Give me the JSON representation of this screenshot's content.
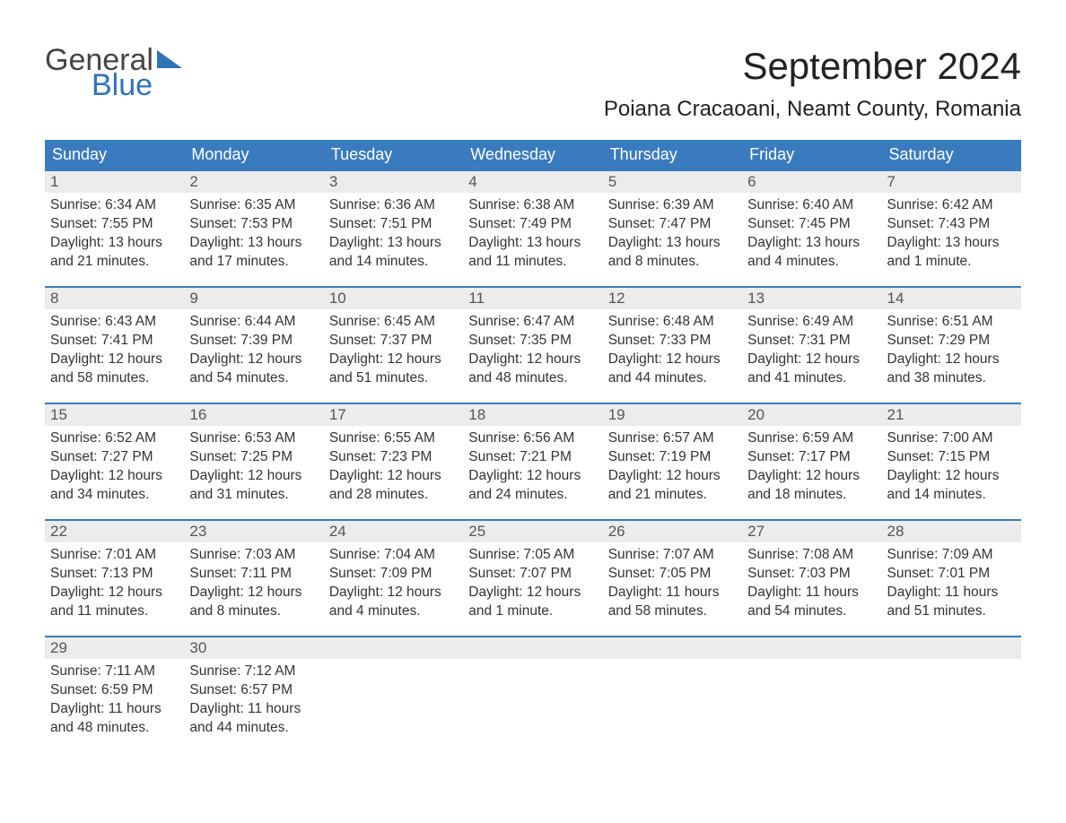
{
  "logo": {
    "text_general": "General",
    "text_blue": "Blue"
  },
  "header": {
    "month_title": "September 2024",
    "location": "Poiana Cracaoani, Neamt County, Romania"
  },
  "colors": {
    "header_bg": "#3a7bbf",
    "header_text": "#ffffff",
    "daynum_bg": "#ececec",
    "border": "#3a7bbf",
    "logo_general": "#444444",
    "logo_blue": "#2f72b8",
    "body_text": "#333333",
    "background": "#ffffff"
  },
  "weekdays": [
    "Sunday",
    "Monday",
    "Tuesday",
    "Wednesday",
    "Thursday",
    "Friday",
    "Saturday"
  ],
  "weeks": [
    [
      {
        "day": "1",
        "sunrise": "Sunrise: 6:34 AM",
        "sunset": "Sunset: 7:55 PM",
        "daylight": "Daylight: 13 hours and 21 minutes."
      },
      {
        "day": "2",
        "sunrise": "Sunrise: 6:35 AM",
        "sunset": "Sunset: 7:53 PM",
        "daylight": "Daylight: 13 hours and 17 minutes."
      },
      {
        "day": "3",
        "sunrise": "Sunrise: 6:36 AM",
        "sunset": "Sunset: 7:51 PM",
        "daylight": "Daylight: 13 hours and 14 minutes."
      },
      {
        "day": "4",
        "sunrise": "Sunrise: 6:38 AM",
        "sunset": "Sunset: 7:49 PM",
        "daylight": "Daylight: 13 hours and 11 minutes."
      },
      {
        "day": "5",
        "sunrise": "Sunrise: 6:39 AM",
        "sunset": "Sunset: 7:47 PM",
        "daylight": "Daylight: 13 hours and 8 minutes."
      },
      {
        "day": "6",
        "sunrise": "Sunrise: 6:40 AM",
        "sunset": "Sunset: 7:45 PM",
        "daylight": "Daylight: 13 hours and 4 minutes."
      },
      {
        "day": "7",
        "sunrise": "Sunrise: 6:42 AM",
        "sunset": "Sunset: 7:43 PM",
        "daylight": "Daylight: 13 hours and 1 minute."
      }
    ],
    [
      {
        "day": "8",
        "sunrise": "Sunrise: 6:43 AM",
        "sunset": "Sunset: 7:41 PM",
        "daylight": "Daylight: 12 hours and 58 minutes."
      },
      {
        "day": "9",
        "sunrise": "Sunrise: 6:44 AM",
        "sunset": "Sunset: 7:39 PM",
        "daylight": "Daylight: 12 hours and 54 minutes."
      },
      {
        "day": "10",
        "sunrise": "Sunrise: 6:45 AM",
        "sunset": "Sunset: 7:37 PM",
        "daylight": "Daylight: 12 hours and 51 minutes."
      },
      {
        "day": "11",
        "sunrise": "Sunrise: 6:47 AM",
        "sunset": "Sunset: 7:35 PM",
        "daylight": "Daylight: 12 hours and 48 minutes."
      },
      {
        "day": "12",
        "sunrise": "Sunrise: 6:48 AM",
        "sunset": "Sunset: 7:33 PM",
        "daylight": "Daylight: 12 hours and 44 minutes."
      },
      {
        "day": "13",
        "sunrise": "Sunrise: 6:49 AM",
        "sunset": "Sunset: 7:31 PM",
        "daylight": "Daylight: 12 hours and 41 minutes."
      },
      {
        "day": "14",
        "sunrise": "Sunrise: 6:51 AM",
        "sunset": "Sunset: 7:29 PM",
        "daylight": "Daylight: 12 hours and 38 minutes."
      }
    ],
    [
      {
        "day": "15",
        "sunrise": "Sunrise: 6:52 AM",
        "sunset": "Sunset: 7:27 PM",
        "daylight": "Daylight: 12 hours and 34 minutes."
      },
      {
        "day": "16",
        "sunrise": "Sunrise: 6:53 AM",
        "sunset": "Sunset: 7:25 PM",
        "daylight": "Daylight: 12 hours and 31 minutes."
      },
      {
        "day": "17",
        "sunrise": "Sunrise: 6:55 AM",
        "sunset": "Sunset: 7:23 PM",
        "daylight": "Daylight: 12 hours and 28 minutes."
      },
      {
        "day": "18",
        "sunrise": "Sunrise: 6:56 AM",
        "sunset": "Sunset: 7:21 PM",
        "daylight": "Daylight: 12 hours and 24 minutes."
      },
      {
        "day": "19",
        "sunrise": "Sunrise: 6:57 AM",
        "sunset": "Sunset: 7:19 PM",
        "daylight": "Daylight: 12 hours and 21 minutes."
      },
      {
        "day": "20",
        "sunrise": "Sunrise: 6:59 AM",
        "sunset": "Sunset: 7:17 PM",
        "daylight": "Daylight: 12 hours and 18 minutes."
      },
      {
        "day": "21",
        "sunrise": "Sunrise: 7:00 AM",
        "sunset": "Sunset: 7:15 PM",
        "daylight": "Daylight: 12 hours and 14 minutes."
      }
    ],
    [
      {
        "day": "22",
        "sunrise": "Sunrise: 7:01 AM",
        "sunset": "Sunset: 7:13 PM",
        "daylight": "Daylight: 12 hours and 11 minutes."
      },
      {
        "day": "23",
        "sunrise": "Sunrise: 7:03 AM",
        "sunset": "Sunset: 7:11 PM",
        "daylight": "Daylight: 12 hours and 8 minutes."
      },
      {
        "day": "24",
        "sunrise": "Sunrise: 7:04 AM",
        "sunset": "Sunset: 7:09 PM",
        "daylight": "Daylight: 12 hours and 4 minutes."
      },
      {
        "day": "25",
        "sunrise": "Sunrise: 7:05 AM",
        "sunset": "Sunset: 7:07 PM",
        "daylight": "Daylight: 12 hours and 1 minute."
      },
      {
        "day": "26",
        "sunrise": "Sunrise: 7:07 AM",
        "sunset": "Sunset: 7:05 PM",
        "daylight": "Daylight: 11 hours and 58 minutes."
      },
      {
        "day": "27",
        "sunrise": "Sunrise: 7:08 AM",
        "sunset": "Sunset: 7:03 PM",
        "daylight": "Daylight: 11 hours and 54 minutes."
      },
      {
        "day": "28",
        "sunrise": "Sunrise: 7:09 AM",
        "sunset": "Sunset: 7:01 PM",
        "daylight": "Daylight: 11 hours and 51 minutes."
      }
    ],
    [
      {
        "day": "29",
        "sunrise": "Sunrise: 7:11 AM",
        "sunset": "Sunset: 6:59 PM",
        "daylight": "Daylight: 11 hours and 48 minutes."
      },
      {
        "day": "30",
        "sunrise": "Sunrise: 7:12 AM",
        "sunset": "Sunset: 6:57 PM",
        "daylight": "Daylight: 11 hours and 44 minutes."
      },
      {
        "empty": true
      },
      {
        "empty": true
      },
      {
        "empty": true
      },
      {
        "empty": true
      },
      {
        "empty": true
      }
    ]
  ]
}
